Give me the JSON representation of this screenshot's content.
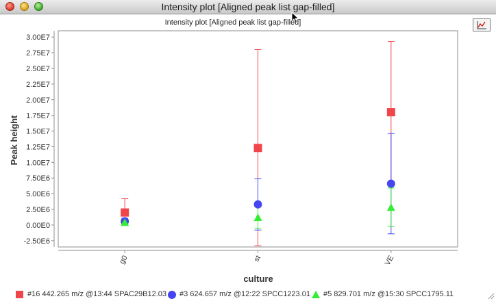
{
  "window": {
    "title": "Intensity plot [Aligned peak list gap-filled]"
  },
  "toolbar": {
    "icon": "line-chart-icon"
  },
  "chart_data": {
    "type": "scatter",
    "title": "Intensity plot [Aligned peak list gap-filled]",
    "xlabel": "culture",
    "ylabel": "Peak height",
    "categories": [
      "g0",
      "st",
      "VE"
    ],
    "ylim": [
      -3500000.0,
      31000000.0
    ],
    "yticks": [
      -2500000.0,
      0,
      2500000.0,
      5000000.0,
      7500000.0,
      10000000.0,
      12500000.0,
      15000000.0,
      17500000.0,
      20000000.0,
      22500000.0,
      25000000.0,
      27500000.0,
      30000000.0
    ],
    "ytick_labels": [
      "-2.50E6",
      "0.00E0",
      "2.50E6",
      "5.00E6",
      "7.50E6",
      "1.00E7",
      "1.25E7",
      "1.50E7",
      "1.75E7",
      "2.00E7",
      "2.25E7",
      "2.50E7",
      "2.75E7",
      "3.00E7"
    ],
    "grid": false,
    "legend": "bottom",
    "series": [
      {
        "name": "#16 442.265 m/z @13:44 SPAC29B12.03",
        "color": "#f0454a",
        "marker": "square",
        "values": [
          2000000.0,
          12300000.0,
          18000000.0
        ],
        "err_low": [
          0.0,
          -3300000.0,
          6500000.0
        ],
        "err_high": [
          4200000.0,
          28000000.0,
          29300000.0
        ]
      },
      {
        "name": "#3 624.657 m/z @12:22 SPCC1223.01",
        "color": "#4646f0",
        "marker": "circle",
        "values": [
          600000.0,
          3300000.0,
          6600000.0
        ],
        "err_low": [
          100000.0,
          -800000.0,
          -1400000.0
        ],
        "err_high": [
          1100000.0,
          7400000.0,
          14600000.0
        ]
      },
      {
        "name": "#5 829.701 m/z @15:30 SPCC1795.11",
        "color": "#33ee33",
        "marker": "triangle",
        "values": [
          400000.0,
          1200000.0,
          2800000.0
        ],
        "err_low": [
          100000.0,
          -500000.0,
          -250000.0
        ],
        "err_high": [
          700000.0,
          2900000.0,
          5900000.0
        ]
      }
    ]
  }
}
